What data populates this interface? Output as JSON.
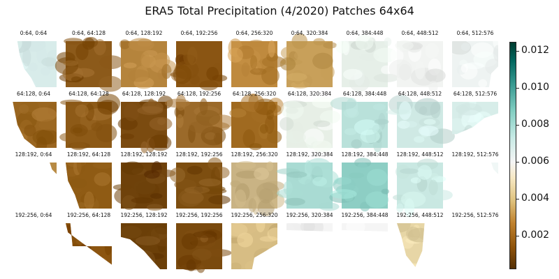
{
  "chart_data": {
    "type": "heatmap",
    "title": "ERA5 Total Precipitation (4/2020) Patches 64x64",
    "colormap": "BrBG",
    "colors": [
      "#543005",
      "#8c510a",
      "#bf812d",
      "#dfc27d",
      "#f6e8c3",
      "#f5f5f5",
      "#c7eae5",
      "#80cdc1",
      "#35978f",
      "#01665e",
      "#003c30"
    ],
    "colorbar": {
      "ticks": [
        "0.002",
        "0.004",
        "0.006",
        "0.008",
        "0.010",
        "0.012"
      ],
      "range": [
        0.0002,
        0.0125
      ]
    },
    "patches": [
      [
        "0:64, 0:64",
        "0:64, 64:128",
        "0:64, 128:192",
        "0:64, 192:256",
        "0:64, 256:320",
        "0:64, 320:384",
        "0:64, 384:448",
        "0:64, 448:512",
        "0:64, 512:576"
      ],
      [
        "64:128, 0:64",
        "64:128, 64:128",
        "64:128, 128:192",
        "64:128, 192:256",
        "64:128, 256:320",
        "64:128, 320:384",
        "64:128, 384:448",
        "64:128, 448:512",
        "64:128, 512:576"
      ],
      [
        "128:192, 0:64",
        "128:192, 64:128",
        "128:192, 128:192",
        "128:192, 192:256",
        "128:192, 256:320",
        "128:192, 320:384",
        "128:192, 384:448",
        "128:192, 448:512",
        "128:192, 512:576"
      ],
      [
        "192:256, 0:64",
        "192:256, 64:128",
        "192:256, 128:192",
        "192:256, 192:256",
        "192:256, 256:320",
        "192:256, 320:384",
        "192:256, 384:448",
        "192:256, 448:512",
        "192:256, 512:576"
      ]
    ],
    "patch_mean_colors": [
      [
        "#d8ecea",
        "#8c5a1a",
        "#b5843c",
        "#8a5513",
        "#bf8a3e",
        "#c8a05a",
        "#e6efe8",
        "#f2f4f2",
        "#eef3f2"
      ],
      [
        "#9a6620",
        "#8d5a17",
        "#7b4b10",
        "#9b6a2a",
        "#a06a20",
        "#e7efe6",
        "#b9e1da",
        "#cfe9e4",
        "#d7ede9"
      ],
      [
        "#b78a44",
        "#8f5b14",
        "#6e410a",
        "#7d4e10",
        "#c9b384",
        "#a9dbd3",
        "#8dcec4",
        "#c9e8e2",
        "#eef4f3"
      ],
      [
        "#f5f5f5",
        "#8c5510",
        "#6b3f08",
        "#7a4a0e",
        "#d7bd84",
        "#f5f5f5",
        "#f5f5f5",
        "#e7d6a6",
        "#f5f5f5"
      ]
    ],
    "patch_shapes": [
      [
        "coast-right",
        "full",
        "full",
        "full",
        "full",
        "full",
        "full",
        "full",
        "full-cut-right"
      ],
      [
        "coast-left",
        "full",
        "full",
        "full",
        "full",
        "full",
        "full",
        "full",
        "partial-left"
      ],
      [
        "sparse",
        "land-left",
        "full",
        "full",
        "full",
        "full",
        "full",
        "full",
        "sparse"
      ],
      [
        "empty",
        "sparse-left",
        "land-diagonal",
        "full",
        "land-top",
        "top-strip",
        "top-strip",
        "land-small",
        "empty"
      ]
    ]
  }
}
